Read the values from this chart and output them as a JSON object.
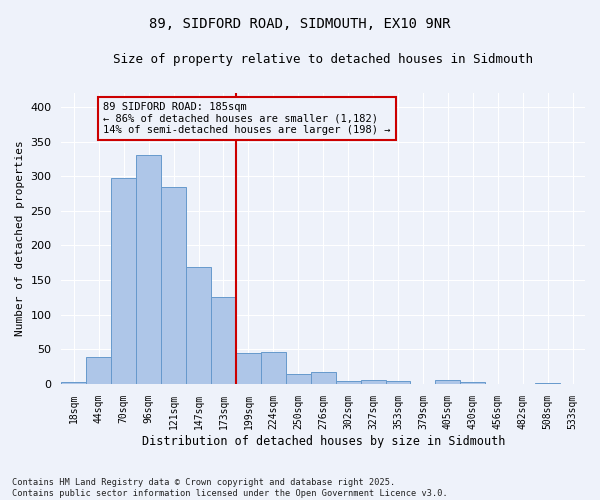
{
  "title": "89, SIDFORD ROAD, SIDMOUTH, EX10 9NR",
  "subtitle": "Size of property relative to detached houses in Sidmouth",
  "xlabel": "Distribution of detached houses by size in Sidmouth",
  "ylabel": "Number of detached properties",
  "categories": [
    "18sqm",
    "44sqm",
    "70sqm",
    "96sqm",
    "121sqm",
    "147sqm",
    "173sqm",
    "199sqm",
    "224sqm",
    "250sqm",
    "276sqm",
    "302sqm",
    "327sqm",
    "353sqm",
    "379sqm",
    "405sqm",
    "430sqm",
    "456sqm",
    "482sqm",
    "508sqm",
    "533sqm"
  ],
  "values": [
    3,
    39,
    297,
    330,
    284,
    169,
    125,
    44,
    46,
    15,
    17,
    4,
    6,
    5,
    0,
    6,
    3,
    0,
    0,
    2,
    0
  ],
  "bar_color": "#aec6e8",
  "bar_edge_color": "#6699cc",
  "vline_color": "#cc0000",
  "vline_pos": 6.5,
  "annotation_text": "89 SIDFORD ROAD: 185sqm\n← 86% of detached houses are smaller (1,182)\n14% of semi-detached houses are larger (198) →",
  "bg_color": "#eef2fa",
  "grid_color": "#ffffff",
  "footer": "Contains HM Land Registry data © Crown copyright and database right 2025.\nContains public sector information licensed under the Open Government Licence v3.0.",
  "ylim": [
    0,
    420
  ],
  "yticks": [
    0,
    50,
    100,
    150,
    200,
    250,
    300,
    350,
    400
  ]
}
